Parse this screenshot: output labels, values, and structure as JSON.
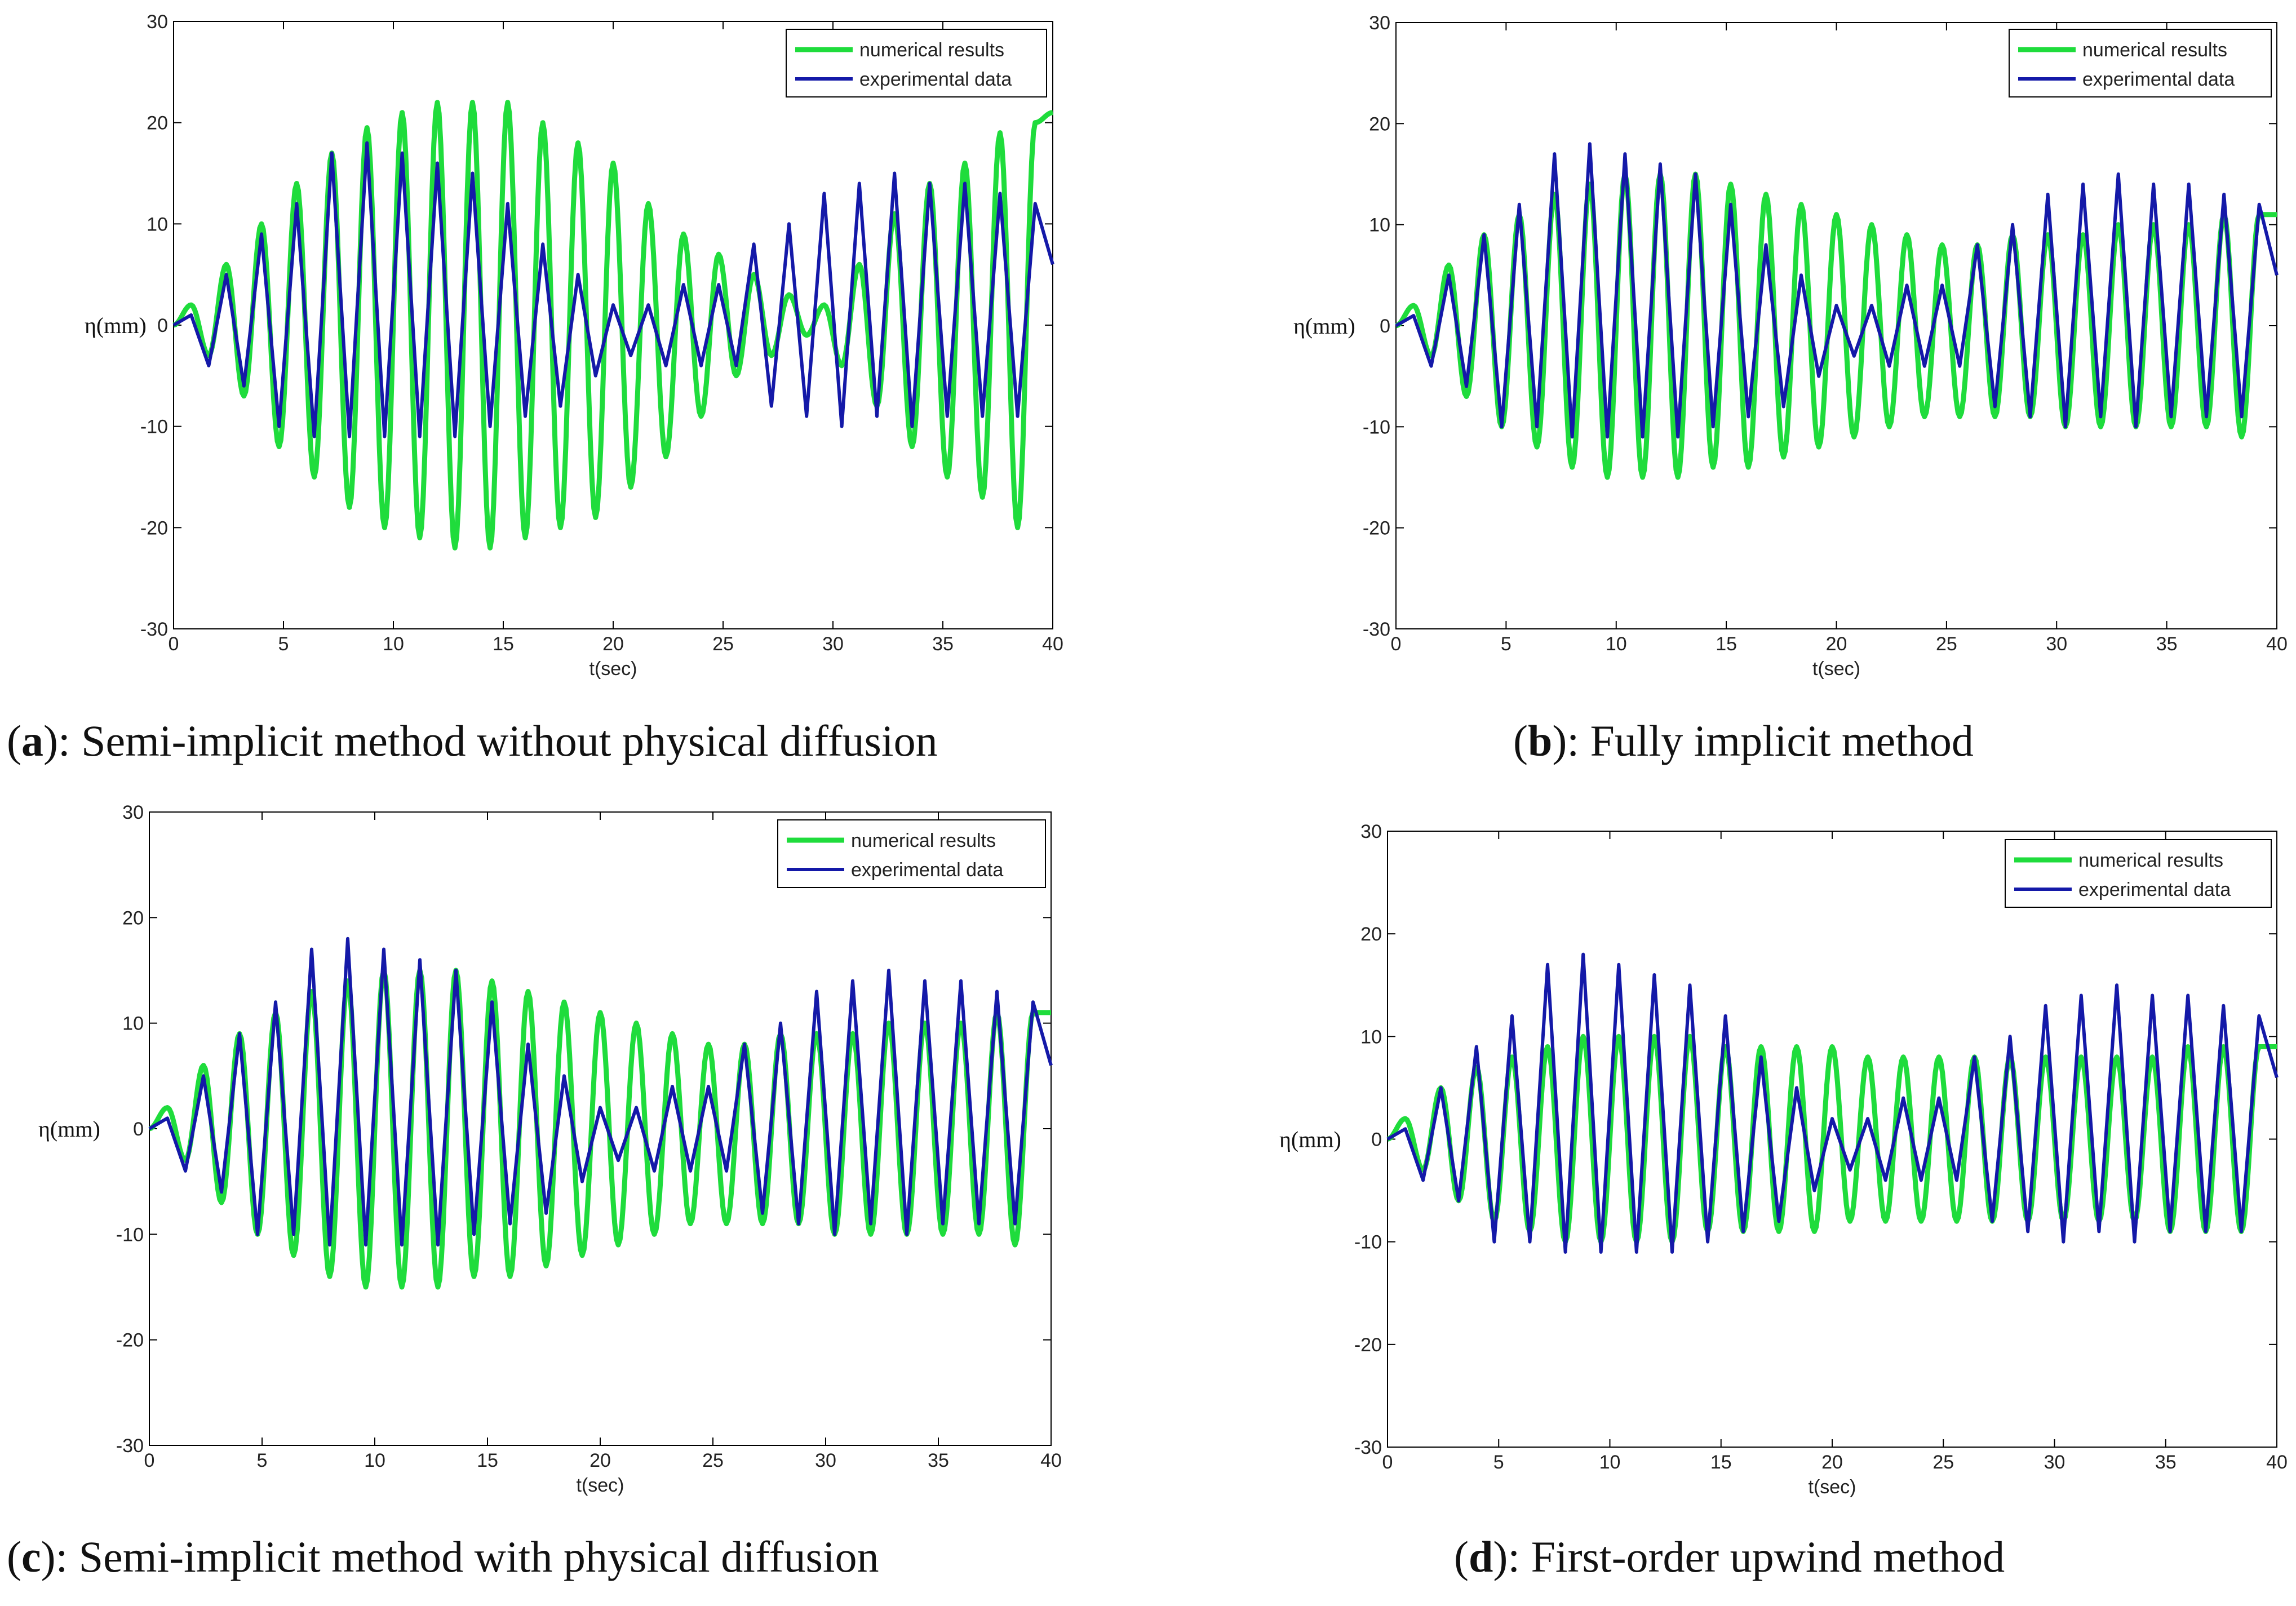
{
  "colors": {
    "numerical": "#1fdc3c",
    "experimental": "#1419a8",
    "axis": "#000000"
  },
  "captions": [
    {
      "letter": "a",
      "text": "): Semi-implicit method without physical diffusion"
    },
    {
      "letter": "b",
      "text": "): Fully implicit method"
    },
    {
      "letter": "c",
      "text": "): Semi-implicit method with physical diffusion"
    },
    {
      "letter": "d",
      "text": "): First-order upwind method"
    }
  ],
  "chart_data": [
    {
      "type": "line",
      "xlabel": "t(sec)",
      "ylabel": "η(mm)",
      "xlim": [
        0,
        40
      ],
      "ylim": [
        -30,
        30
      ],
      "xticks": [
        "0",
        "5",
        "10",
        "15",
        "20",
        "25",
        "30",
        "35",
        "40"
      ],
      "yticks": [
        "30",
        "20",
        "10",
        "0",
        "-10",
        "-20",
        "-30"
      ],
      "legend": [
        "numerical results",
        "experimental data"
      ],
      "legend_position": "top-right",
      "series": [
        {
          "name": "numerical results",
          "x": [
            0,
            0.8,
            1.6,
            2.4,
            3.2,
            4.0,
            4.8,
            5.6,
            6.4,
            7.2,
            8.0,
            8.8,
            9.6,
            10.4,
            11.2,
            12.0,
            12.8,
            13.6,
            14.4,
            15.2,
            16.0,
            16.8,
            17.6,
            18.4,
            19.2,
            20.0,
            20.8,
            21.6,
            22.4,
            23.2,
            24.0,
            24.8,
            25.6,
            26.4,
            27.2,
            28.0,
            28.8,
            29.6,
            30.4,
            31.2,
            32.0,
            32.8,
            33.6,
            34.4,
            35.2,
            36.0,
            36.8,
            37.6,
            38.4,
            39.2,
            40.0
          ],
          "y": [
            0,
            2,
            -3,
            6,
            -7,
            10,
            -12,
            14,
            -15,
            17,
            -18,
            19.5,
            -20,
            21,
            -21,
            22,
            -22,
            22,
            -22,
            22,
            -21,
            20,
            -20,
            18,
            -19,
            16,
            -16,
            12,
            -13,
            9,
            -9,
            7,
            -5,
            5,
            -3,
            3,
            -1,
            2,
            -4,
            6,
            -8,
            11,
            -12,
            14,
            -15,
            16,
            -17,
            19,
            -20,
            20,
            21
          ]
        },
        {
          "name": "experimental data",
          "x": [
            0,
            0.8,
            1.6,
            2.4,
            3.2,
            4.0,
            4.8,
            5.6,
            6.4,
            7.2,
            8.0,
            8.8,
            9.6,
            10.4,
            11.2,
            12.0,
            12.8,
            13.6,
            14.4,
            15.2,
            16.0,
            16.8,
            17.6,
            18.4,
            19.2,
            20.0,
            20.8,
            21.6,
            22.4,
            23.2,
            24.0,
            24.8,
            25.6,
            26.4,
            27.2,
            28.0,
            28.8,
            29.6,
            30.4,
            31.2,
            32.0,
            32.8,
            33.6,
            34.4,
            35.2,
            36.0,
            36.8,
            37.6,
            38.4,
            39.2,
            40.0
          ],
          "y": [
            0,
            1,
            -4,
            5,
            -6,
            9,
            -10,
            12,
            -11,
            17,
            -11,
            18,
            -11,
            17,
            -11,
            16,
            -11,
            15,
            -10,
            12,
            -9,
            8,
            -8,
            5,
            -5,
            2,
            -3,
            2,
            -4,
            4,
            -4,
            4,
            -4,
            8,
            -8,
            10,
            -9,
            13,
            -10,
            14,
            -9,
            15,
            -10,
            14,
            -9,
            14,
            -9,
            13,
            -9,
            12,
            6
          ]
        }
      ]
    },
    {
      "type": "line",
      "xlabel": "t(sec)",
      "ylabel": "η(mm)",
      "xlim": [
        0,
        40
      ],
      "ylim": [
        -30,
        30
      ],
      "xticks": [
        "0",
        "5",
        "10",
        "15",
        "20",
        "25",
        "30",
        "35",
        "40"
      ],
      "yticks": [
        "30",
        "20",
        "10",
        "0",
        "-10",
        "-20",
        "-30"
      ],
      "legend": [
        "numerical results",
        "experimental data"
      ],
      "legend_position": "top-right",
      "series": [
        {
          "name": "numerical results",
          "x": [
            0,
            0.8,
            1.6,
            2.4,
            3.2,
            4.0,
            4.8,
            5.6,
            6.4,
            7.2,
            8.0,
            8.8,
            9.6,
            10.4,
            11.2,
            12.0,
            12.8,
            13.6,
            14.4,
            15.2,
            16.0,
            16.8,
            17.6,
            18.4,
            19.2,
            20.0,
            20.8,
            21.6,
            22.4,
            23.2,
            24.0,
            24.8,
            25.6,
            26.4,
            27.2,
            28.0,
            28.8,
            29.6,
            30.4,
            31.2,
            32.0,
            32.8,
            33.6,
            34.4,
            35.2,
            36.0,
            36.8,
            37.6,
            38.4,
            39.2,
            40.0
          ],
          "y": [
            0,
            2,
            -3,
            6,
            -7,
            9,
            -10,
            11,
            -12,
            13,
            -14,
            14,
            -15,
            15,
            -15,
            15,
            -15,
            15,
            -14,
            14,
            -14,
            13,
            -13,
            12,
            -12,
            11,
            -11,
            10,
            -10,
            9,
            -9,
            8,
            -9,
            8,
            -9,
            9,
            -9,
            9,
            -10,
            9,
            -10,
            10,
            -10,
            10,
            -10,
            10,
            -10,
            11,
            -11,
            11,
            11
          ]
        },
        {
          "name": "experimental data",
          "x": [
            0,
            0.8,
            1.6,
            2.4,
            3.2,
            4.0,
            4.8,
            5.6,
            6.4,
            7.2,
            8.0,
            8.8,
            9.6,
            10.4,
            11.2,
            12.0,
            12.8,
            13.6,
            14.4,
            15.2,
            16.0,
            16.8,
            17.6,
            18.4,
            19.2,
            20.0,
            20.8,
            21.6,
            22.4,
            23.2,
            24.0,
            24.8,
            25.6,
            26.4,
            27.2,
            28.0,
            28.8,
            29.6,
            30.4,
            31.2,
            32.0,
            32.8,
            33.6,
            34.4,
            35.2,
            36.0,
            36.8,
            37.6,
            38.4,
            39.2,
            40.0
          ],
          "y": [
            0,
            1,
            -4,
            5,
            -6,
            9,
            -10,
            12,
            -10,
            17,
            -11,
            18,
            -11,
            17,
            -11,
            16,
            -11,
            15,
            -10,
            12,
            -9,
            8,
            -8,
            5,
            -5,
            2,
            -3,
            2,
            -4,
            4,
            -4,
            4,
            -4,
            8,
            -8,
            10,
            -9,
            13,
            -10,
            14,
            -9,
            15,
            -10,
            14,
            -9,
            14,
            -9,
            13,
            -9,
            12,
            5
          ]
        }
      ]
    },
    {
      "type": "line",
      "xlabel": "t(sec)",
      "ylabel": "η(mm)",
      "xlim": [
        0,
        40
      ],
      "ylim": [
        -30,
        30
      ],
      "xticks": [
        "0",
        "5",
        "10",
        "15",
        "20",
        "25",
        "30",
        "35",
        "40"
      ],
      "yticks": [
        "30",
        "20",
        "10",
        "0",
        "-10",
        "-20",
        "-30"
      ],
      "legend": [
        "numerical results",
        "experimental data"
      ],
      "legend_position": "top-right",
      "series": [
        {
          "name": "numerical results",
          "x": [
            0,
            0.8,
            1.6,
            2.4,
            3.2,
            4.0,
            4.8,
            5.6,
            6.4,
            7.2,
            8.0,
            8.8,
            9.6,
            10.4,
            11.2,
            12.0,
            12.8,
            13.6,
            14.4,
            15.2,
            16.0,
            16.8,
            17.6,
            18.4,
            19.2,
            20.0,
            20.8,
            21.6,
            22.4,
            23.2,
            24.0,
            24.8,
            25.6,
            26.4,
            27.2,
            28.0,
            28.8,
            29.6,
            30.4,
            31.2,
            32.0,
            32.8,
            33.6,
            34.4,
            35.2,
            36.0,
            36.8,
            37.6,
            38.4,
            39.2,
            40.0
          ],
          "y": [
            0,
            2,
            -3,
            6,
            -7,
            9,
            -10,
            11,
            -12,
            13,
            -14,
            14,
            -15,
            15,
            -15,
            15,
            -15,
            15,
            -14,
            14,
            -14,
            13,
            -13,
            12,
            -12,
            11,
            -11,
            10,
            -10,
            9,
            -9,
            8,
            -9,
            8,
            -9,
            9,
            -9,
            9,
            -10,
            9,
            -10,
            10,
            -10,
            10,
            -10,
            10,
            -10,
            11,
            -11,
            11,
            11
          ]
        },
        {
          "name": "experimental data",
          "x": [
            0,
            0.8,
            1.6,
            2.4,
            3.2,
            4.0,
            4.8,
            5.6,
            6.4,
            7.2,
            8.0,
            8.8,
            9.6,
            10.4,
            11.2,
            12.0,
            12.8,
            13.6,
            14.4,
            15.2,
            16.0,
            16.8,
            17.6,
            18.4,
            19.2,
            20.0,
            20.8,
            21.6,
            22.4,
            23.2,
            24.0,
            24.8,
            25.6,
            26.4,
            27.2,
            28.0,
            28.8,
            29.6,
            30.4,
            31.2,
            32.0,
            32.8,
            33.6,
            34.4,
            35.2,
            36.0,
            36.8,
            37.6,
            38.4,
            39.2,
            40.0
          ],
          "y": [
            0,
            1,
            -4,
            5,
            -6,
            9,
            -10,
            12,
            -10,
            17,
            -11,
            18,
            -11,
            17,
            -11,
            16,
            -11,
            15,
            -10,
            12,
            -9,
            8,
            -8,
            5,
            -5,
            2,
            -3,
            2,
            -4,
            4,
            -4,
            4,
            -4,
            8,
            -8,
            10,
            -9,
            13,
            -10,
            14,
            -9,
            15,
            -10,
            14,
            -9,
            14,
            -9,
            13,
            -9,
            12,
            6
          ]
        }
      ]
    },
    {
      "type": "line",
      "xlabel": "t(sec)",
      "ylabel": "η(mm)",
      "xlim": [
        0,
        40
      ],
      "ylim": [
        -30,
        30
      ],
      "xticks": [
        "0",
        "5",
        "10",
        "15",
        "20",
        "25",
        "30",
        "35",
        "40"
      ],
      "yticks": [
        "30",
        "20",
        "10",
        "0",
        "-10",
        "-20",
        "-30"
      ],
      "legend": [
        "numerical results",
        "experimental data"
      ],
      "legend_position": "top-right",
      "series": [
        {
          "name": "numerical results",
          "x": [
            0,
            0.8,
            1.6,
            2.4,
            3.2,
            4.0,
            4.8,
            5.6,
            6.4,
            7.2,
            8.0,
            8.8,
            9.6,
            10.4,
            11.2,
            12.0,
            12.8,
            13.6,
            14.4,
            15.2,
            16.0,
            16.8,
            17.6,
            18.4,
            19.2,
            20.0,
            20.8,
            21.6,
            22.4,
            23.2,
            24.0,
            24.8,
            25.6,
            26.4,
            27.2,
            28.0,
            28.8,
            29.6,
            30.4,
            31.2,
            32.0,
            32.8,
            33.6,
            34.4,
            35.2,
            36.0,
            36.8,
            37.6,
            38.4,
            39.2,
            40.0
          ],
          "y": [
            0,
            2,
            -3,
            5,
            -6,
            7,
            -8,
            8,
            -9,
            9,
            -10,
            10,
            -10,
            10,
            -10,
            10,
            -10,
            10,
            -9,
            9,
            -9,
            9,
            -9,
            9,
            -9,
            9,
            -8,
            8,
            -8,
            8,
            -8,
            8,
            -8,
            8,
            -8,
            8,
            -8,
            8,
            -8,
            8,
            -8,
            8,
            -8,
            8,
            -9,
            9,
            -9,
            9,
            -9,
            9,
            9
          ]
        },
        {
          "name": "experimental data",
          "x": [
            0,
            0.8,
            1.6,
            2.4,
            3.2,
            4.0,
            4.8,
            5.6,
            6.4,
            7.2,
            8.0,
            8.8,
            9.6,
            10.4,
            11.2,
            12.0,
            12.8,
            13.6,
            14.4,
            15.2,
            16.0,
            16.8,
            17.6,
            18.4,
            19.2,
            20.0,
            20.8,
            21.6,
            22.4,
            23.2,
            24.0,
            24.8,
            25.6,
            26.4,
            27.2,
            28.0,
            28.8,
            29.6,
            30.4,
            31.2,
            32.0,
            32.8,
            33.6,
            34.4,
            35.2,
            36.0,
            36.8,
            37.6,
            38.4,
            39.2,
            40.0
          ],
          "y": [
            0,
            1,
            -4,
            5,
            -6,
            9,
            -10,
            12,
            -10,
            17,
            -11,
            18,
            -11,
            17,
            -11,
            16,
            -11,
            15,
            -10,
            12,
            -9,
            8,
            -8,
            5,
            -5,
            2,
            -3,
            2,
            -4,
            4,
            -4,
            4,
            -4,
            8,
            -8,
            10,
            -9,
            13,
            -10,
            14,
            -9,
            15,
            -10,
            14,
            -9,
            14,
            -9,
            13,
            -9,
            12,
            6
          ]
        }
      ]
    }
  ]
}
